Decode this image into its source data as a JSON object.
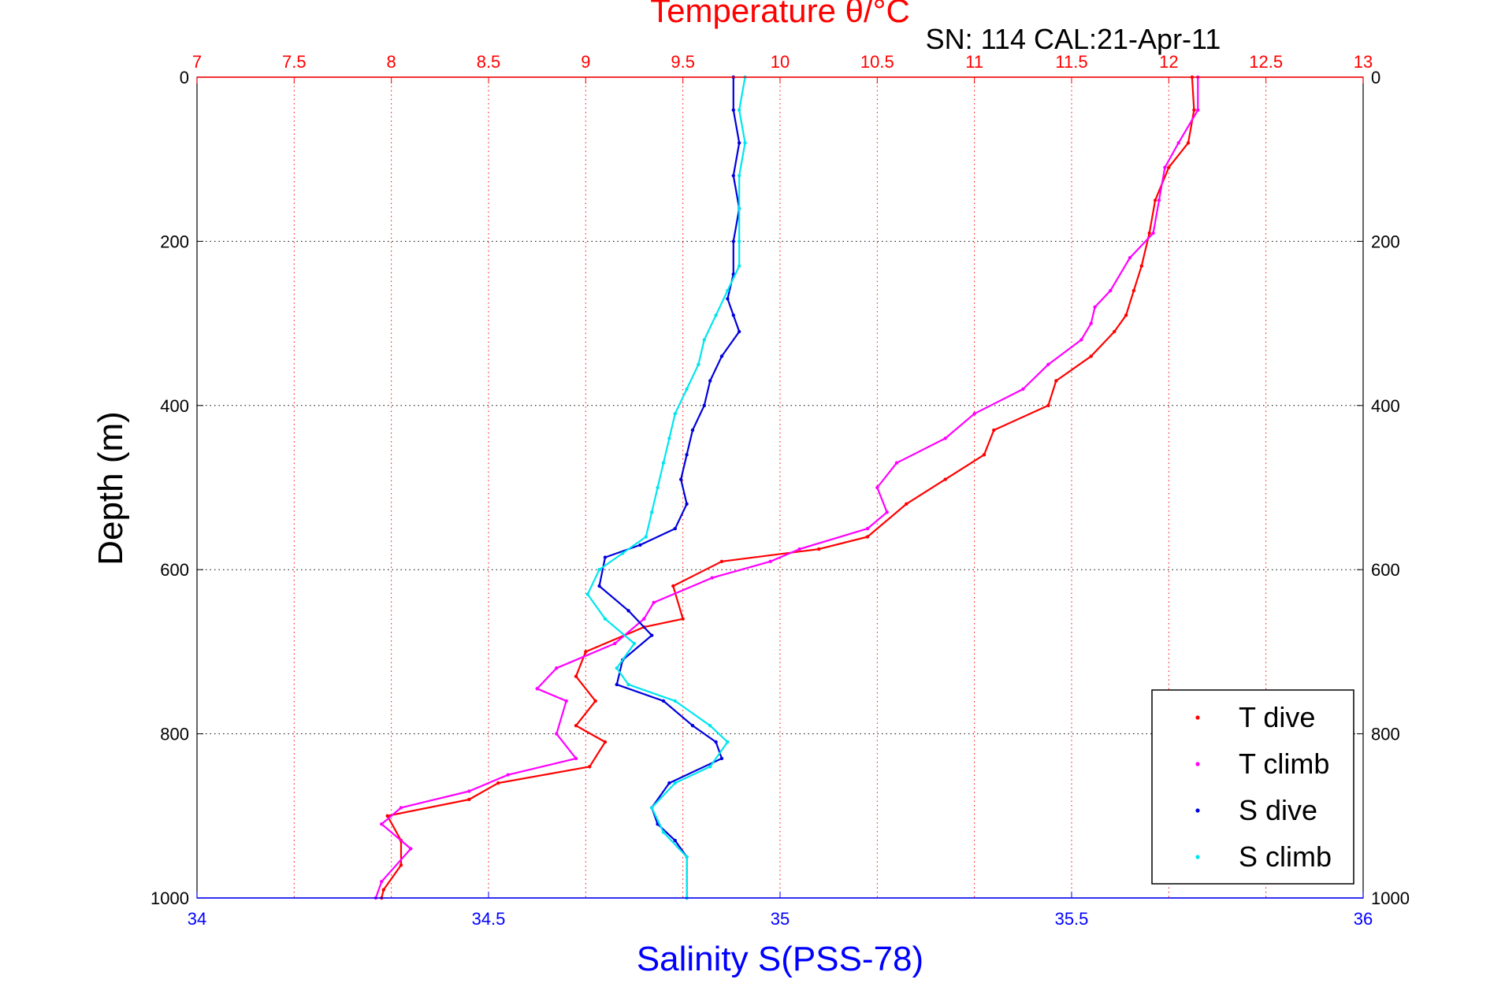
{
  "chart_data": {
    "type": "scatter",
    "top_axis_label": "Temperature θ/°C",
    "subtitle": "SN: 114  CAL:21-Apr-11",
    "ylabel": "Depth (m)",
    "xlabel": "Salinity S(PSS-78)",
    "temperature_range": [
      7,
      13
    ],
    "temperature_ticks": [
      "7",
      "7.5",
      "8",
      "8.5",
      "9",
      "9.5",
      "10",
      "10.5",
      "11",
      "11.5",
      "12",
      "12.5",
      "13"
    ],
    "salinity_range": [
      34,
      36
    ],
    "salinity_ticks": [
      "34",
      "34.5",
      "35",
      "35.5",
      "36"
    ],
    "depth_range": [
      0,
      1000
    ],
    "depth_reversed": true,
    "depth_ticks": [
      "0",
      "200",
      "400",
      "600",
      "800",
      "1000"
    ],
    "grid": true,
    "legend_position": "bottom-right",
    "colors": {
      "T dive": "#ff0000",
      "T climb": "#ff00ff",
      "S dive": "#0000dd",
      "S climb": "#00e5ee",
      "top_axis": "#ff0000",
      "bottom_axis": "#0000ff"
    },
    "series": [
      {
        "name": "T dive",
        "axis": "temperature",
        "points": [
          [
            12.12,
            0
          ],
          [
            12.13,
            40
          ],
          [
            12.1,
            80
          ],
          [
            12.0,
            110
          ],
          [
            11.93,
            150
          ],
          [
            11.9,
            190
          ],
          [
            11.86,
            230
          ],
          [
            11.82,
            260
          ],
          [
            11.78,
            290
          ],
          [
            11.72,
            310
          ],
          [
            11.6,
            340
          ],
          [
            11.42,
            370
          ],
          [
            11.38,
            400
          ],
          [
            11.1,
            430
          ],
          [
            11.05,
            460
          ],
          [
            10.85,
            490
          ],
          [
            10.65,
            520
          ],
          [
            10.45,
            560
          ],
          [
            10.2,
            575
          ],
          [
            9.7,
            590
          ],
          [
            9.45,
            620
          ],
          [
            9.5,
            660
          ],
          [
            9.3,
            670
          ],
          [
            9.0,
            700
          ],
          [
            8.95,
            730
          ],
          [
            9.05,
            760
          ],
          [
            8.95,
            790
          ],
          [
            9.1,
            810
          ],
          [
            9.02,
            840
          ],
          [
            8.55,
            860
          ],
          [
            8.4,
            880
          ],
          [
            7.98,
            900
          ],
          [
            8.05,
            930
          ],
          [
            8.05,
            960
          ],
          [
            7.96,
            990
          ],
          [
            7.95,
            1000
          ]
        ]
      },
      {
        "name": "T climb",
        "axis": "temperature",
        "points": [
          [
            12.15,
            0
          ],
          [
            12.15,
            40
          ],
          [
            12.05,
            80
          ],
          [
            11.98,
            110
          ],
          [
            11.95,
            150
          ],
          [
            11.92,
            190
          ],
          [
            11.8,
            220
          ],
          [
            11.7,
            260
          ],
          [
            11.62,
            280
          ],
          [
            11.6,
            300
          ],
          [
            11.55,
            320
          ],
          [
            11.38,
            350
          ],
          [
            11.25,
            380
          ],
          [
            11.0,
            410
          ],
          [
            10.85,
            440
          ],
          [
            10.6,
            470
          ],
          [
            10.5,
            500
          ],
          [
            10.55,
            530
          ],
          [
            10.45,
            550
          ],
          [
            10.1,
            575
          ],
          [
            9.95,
            590
          ],
          [
            9.65,
            610
          ],
          [
            9.35,
            640
          ],
          [
            9.3,
            660
          ],
          [
            9.15,
            690
          ],
          [
            8.85,
            720
          ],
          [
            8.75,
            745
          ],
          [
            8.9,
            760
          ],
          [
            8.85,
            800
          ],
          [
            8.95,
            830
          ],
          [
            8.6,
            850
          ],
          [
            8.4,
            870
          ],
          [
            8.05,
            890
          ],
          [
            7.95,
            910
          ],
          [
            8.1,
            940
          ],
          [
            7.95,
            980
          ],
          [
            7.92,
            1000
          ]
        ]
      },
      {
        "name": "S dive",
        "axis": "salinity",
        "points": [
          [
            34.92,
            0
          ],
          [
            34.92,
            40
          ],
          [
            34.93,
            80
          ],
          [
            34.92,
            120
          ],
          [
            34.93,
            160
          ],
          [
            34.92,
            200
          ],
          [
            34.92,
            240
          ],
          [
            34.91,
            270
          ],
          [
            34.92,
            290
          ],
          [
            34.93,
            310
          ],
          [
            34.9,
            340
          ],
          [
            34.88,
            370
          ],
          [
            34.87,
            400
          ],
          [
            34.85,
            430
          ],
          [
            34.84,
            460
          ],
          [
            34.83,
            490
          ],
          [
            34.84,
            520
          ],
          [
            34.82,
            550
          ],
          [
            34.76,
            570
          ],
          [
            34.7,
            585
          ],
          [
            34.69,
            620
          ],
          [
            34.74,
            650
          ],
          [
            34.78,
            680
          ],
          [
            34.73,
            710
          ],
          [
            34.72,
            740
          ],
          [
            34.8,
            760
          ],
          [
            34.85,
            790
          ],
          [
            34.89,
            810
          ],
          [
            34.9,
            830
          ],
          [
            34.81,
            860
          ],
          [
            34.78,
            890
          ],
          [
            34.79,
            910
          ],
          [
            34.82,
            930
          ],
          [
            34.84,
            950
          ],
          [
            34.84,
            1000
          ]
        ]
      },
      {
        "name": "S climb",
        "axis": "salinity",
        "points": [
          [
            34.94,
            0
          ],
          [
            34.93,
            40
          ],
          [
            34.94,
            80
          ],
          [
            34.93,
            120
          ],
          [
            34.93,
            160
          ],
          [
            34.93,
            200
          ],
          [
            34.93,
            230
          ],
          [
            34.91,
            260
          ],
          [
            34.89,
            290
          ],
          [
            34.87,
            320
          ],
          [
            34.86,
            350
          ],
          [
            34.84,
            380
          ],
          [
            34.82,
            410
          ],
          [
            34.81,
            440
          ],
          [
            34.8,
            470
          ],
          [
            34.79,
            500
          ],
          [
            34.78,
            530
          ],
          [
            34.77,
            560
          ],
          [
            34.73,
            580
          ],
          [
            34.69,
            600
          ],
          [
            34.67,
            630
          ],
          [
            34.7,
            660
          ],
          [
            34.75,
            690
          ],
          [
            34.72,
            720
          ],
          [
            34.74,
            740
          ],
          [
            34.82,
            760
          ],
          [
            34.88,
            790
          ],
          [
            34.91,
            810
          ],
          [
            34.88,
            840
          ],
          [
            34.82,
            860
          ],
          [
            34.78,
            890
          ],
          [
            34.8,
            920
          ],
          [
            34.84,
            950
          ],
          [
            34.84,
            1000
          ]
        ]
      }
    ]
  }
}
